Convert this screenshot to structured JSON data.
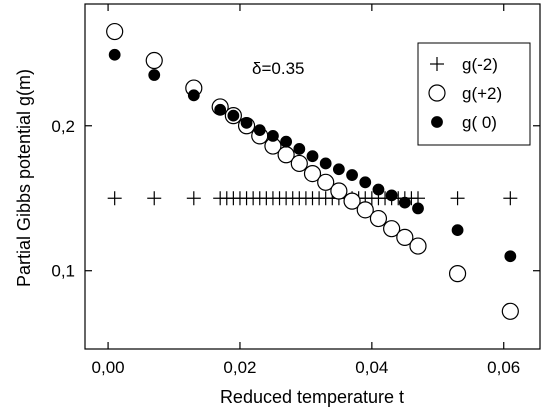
{
  "chart_data": {
    "type": "scatter",
    "xlabel": "Reduced temperature t",
    "ylabel": "Partial Gibbs potential g(m)",
    "annotation": "δ=0.35",
    "xlim": [
      -0.0035,
      0.0655
    ],
    "ylim": [
      0.046,
      0.284
    ],
    "xticks": [
      0.0,
      0.02,
      0.04,
      0.06
    ],
    "xtick_labels": [
      "0,00",
      "0,02",
      "0,04",
      "0,06"
    ],
    "yticks": [
      0.1,
      0.2
    ],
    "ytick_labels": [
      "0,1",
      "0,2"
    ],
    "grid": false,
    "legend_position": "top-right",
    "series": [
      {
        "name": "g(-2)",
        "marker": "plus",
        "x": [
          0.001,
          0.007,
          0.013,
          0.017,
          0.018,
          0.019,
          0.02,
          0.021,
          0.022,
          0.023,
          0.024,
          0.025,
          0.026,
          0.027,
          0.028,
          0.029,
          0.03,
          0.031,
          0.032,
          0.033,
          0.034,
          0.035,
          0.036,
          0.037,
          0.038,
          0.039,
          0.04,
          0.041,
          0.042,
          0.043,
          0.044,
          0.045,
          0.046,
          0.047,
          0.053,
          0.061
        ],
        "y": [
          0.15,
          0.15,
          0.15,
          0.15,
          0.15,
          0.15,
          0.15,
          0.15,
          0.15,
          0.15,
          0.15,
          0.15,
          0.15,
          0.15,
          0.15,
          0.15,
          0.15,
          0.15,
          0.15,
          0.15,
          0.15,
          0.15,
          0.15,
          0.15,
          0.15,
          0.15,
          0.15,
          0.15,
          0.15,
          0.15,
          0.15,
          0.15,
          0.15,
          0.15,
          0.15,
          0.15
        ]
      },
      {
        "name": "g(+2)",
        "marker": "open-circle",
        "x": [
          0.001,
          0.007,
          0.013,
          0.017,
          0.019,
          0.021,
          0.023,
          0.025,
          0.027,
          0.029,
          0.031,
          0.033,
          0.035,
          0.037,
          0.039,
          0.041,
          0.043,
          0.045,
          0.047,
          0.053,
          0.061
        ],
        "y": [
          0.265,
          0.245,
          0.226,
          0.213,
          0.207,
          0.2,
          0.193,
          0.186,
          0.18,
          0.174,
          0.167,
          0.161,
          0.155,
          0.148,
          0.142,
          0.136,
          0.129,
          0.123,
          0.117,
          0.098,
          0.072
        ]
      },
      {
        "name": "g( 0)",
        "marker": "filled-circle",
        "x": [
          0.001,
          0.007,
          0.013,
          0.017,
          0.019,
          0.021,
          0.023,
          0.025,
          0.027,
          0.029,
          0.031,
          0.033,
          0.035,
          0.037,
          0.039,
          0.041,
          0.043,
          0.045,
          0.047,
          0.053,
          0.061
        ],
        "y": [
          0.249,
          0.235,
          0.221,
          0.211,
          0.207,
          0.202,
          0.197,
          0.193,
          0.189,
          0.184,
          0.179,
          0.174,
          0.17,
          0.166,
          0.161,
          0.156,
          0.152,
          0.147,
          0.143,
          0.128,
          0.11
        ]
      }
    ]
  }
}
